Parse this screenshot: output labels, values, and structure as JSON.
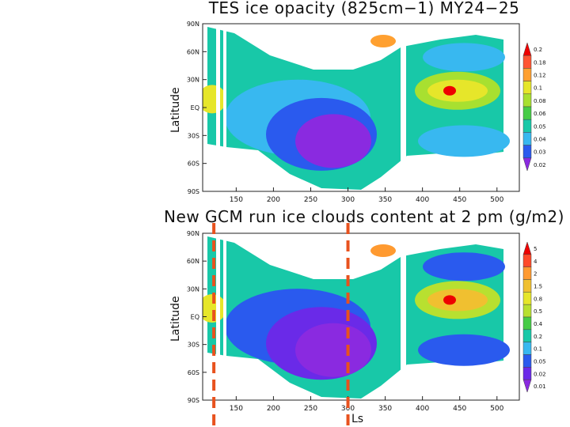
{
  "chart_data": [
    {
      "type": "heatmap",
      "title": "TES ice opacity (825cm−1) MY24−25",
      "xlabel": "",
      "ylabel": "Latitude",
      "x_ticks": [
        "150",
        "200",
        "250",
        "300",
        "350",
        "400",
        "450",
        "500"
      ],
      "y_ticks": [
        "90N",
        "60N",
        "30N",
        "EQ",
        "30S",
        "60S",
        "90S"
      ],
      "xlim": [
        105,
        530
      ],
      "ylim": [
        -90,
        90
      ],
      "colorbar": [
        "0.2",
        "0.18",
        "0.12",
        "0.1",
        "0.08",
        "0.06",
        "0.05",
        "0.04",
        "0.03",
        "0.02"
      ],
      "colors": [
        "#ee0000",
        "#ff5533",
        "#ffa030",
        "#e6e62a",
        "#a8e030",
        "#46cc46",
        "#18c8a8",
        "#38b8f0",
        "#2a5aee",
        "#8a2ae0"
      ]
    },
    {
      "type": "heatmap",
      "title": "New GCM run ice clouds content at 2 pm (g/m2)",
      "xlabel": "Ls",
      "ylabel": "Latitude",
      "x_ticks": [
        "150",
        "200",
        "250",
        "300",
        "350",
        "400",
        "450",
        "500"
      ],
      "y_ticks": [
        "90N",
        "60N",
        "30N",
        "EQ",
        "30S",
        "60S",
        "90S"
      ],
      "xlim": [
        105,
        530
      ],
      "ylim": [
        -90,
        90
      ],
      "colorbar": [
        "5",
        "4",
        "2",
        "1.5",
        "0.8",
        "0.5",
        "0.4",
        "0.2",
        "0.1",
        "0.05",
        "0.02",
        "0.01"
      ],
      "colors": [
        "#ee0000",
        "#ff4a2a",
        "#ff9a30",
        "#f0c030",
        "#e6e62a",
        "#b8e030",
        "#46cc46",
        "#18c8a8",
        "#38b8f0",
        "#2a5aee",
        "#6a2ae8",
        "#8a2ae0"
      ],
      "marker_lines_ls": [
        120,
        300
      ]
    }
  ]
}
